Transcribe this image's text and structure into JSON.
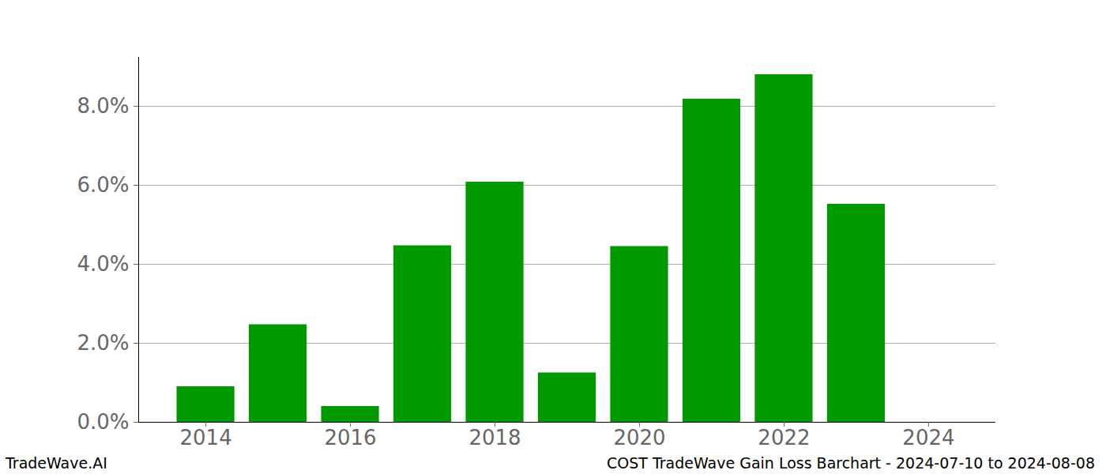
{
  "chart_data": {
    "type": "bar",
    "title": "COST TradeWave Gain Loss Barchart - 2024-07-10 to 2024-08-08",
    "source": "TradeWave.AI",
    "x": [
      2014,
      2015,
      2016,
      2017,
      2018,
      2019,
      2020,
      2021,
      2022,
      2023
    ],
    "values": [
      0.9,
      2.47,
      0.4,
      4.47,
      6.08,
      1.25,
      4.45,
      8.18,
      8.8,
      5.52
    ],
    "color": "#009900",
    "xlim": [
      2013.07,
      2024.93
    ],
    "xticks": [
      2014,
      2016,
      2018,
      2020,
      2022,
      2024
    ],
    "ylim": [
      0,
      9.24
    ],
    "yticks": [
      {
        "value": 0,
        "label": "0.0%"
      },
      {
        "value": 2,
        "label": "2.0%"
      },
      {
        "value": 4,
        "label": "4.0%"
      },
      {
        "value": 6,
        "label": "6.0%"
      },
      {
        "value": 8,
        "label": "8.0%"
      }
    ],
    "grid": true
  }
}
